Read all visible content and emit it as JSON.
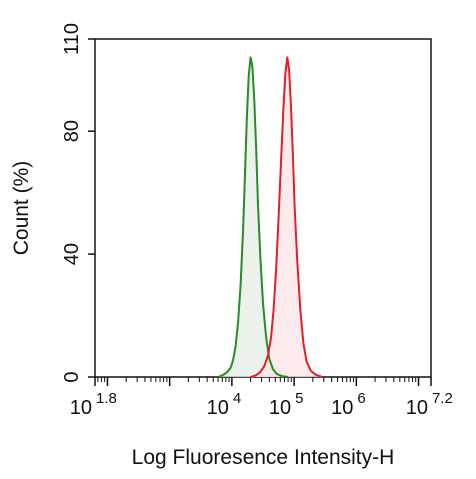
{
  "chart_data": {
    "type": "area",
    "title": "",
    "xlabel": "Log Fluoresence Intensity-H",
    "ylabel": "Count  (%)",
    "x_scale": "log",
    "xlim": [
      1.8,
      7.2
    ],
    "ylim": [
      0,
      110
    ],
    "x_ticks": [
      {
        "base": "10",
        "exp": "1.8",
        "value": 1.8
      },
      {
        "base": "10",
        "exp": "4",
        "value": 4
      },
      {
        "base": "10",
        "exp": "5",
        "value": 5
      },
      {
        "base": "10",
        "exp": "6",
        "value": 6
      },
      {
        "base": "10",
        "exp": "7.2",
        "value": 7.2
      }
    ],
    "y_ticks": [
      {
        "label": "0",
        "value": 0
      },
      {
        "label": "40",
        "value": 40
      },
      {
        "label": "80",
        "value": 80
      },
      {
        "label": "110",
        "value": 110
      }
    ],
    "grid": false,
    "legend": "none",
    "series": [
      {
        "color": "#2a8a2a",
        "fill": "#e4eee4",
        "points": [
          [
            3.78,
            0
          ],
          [
            3.85,
            0.6
          ],
          [
            3.92,
            1.5
          ],
          [
            3.98,
            3
          ],
          [
            4.02,
            5.5
          ],
          [
            4.06,
            10
          ],
          [
            4.1,
            18
          ],
          [
            4.14,
            30
          ],
          [
            4.18,
            48
          ],
          [
            4.21,
            66
          ],
          [
            4.24,
            84
          ],
          [
            4.27,
            98
          ],
          [
            4.3,
            104
          ],
          [
            4.33,
            101
          ],
          [
            4.36,
            90
          ],
          [
            4.39,
            74
          ],
          [
            4.42,
            56
          ],
          [
            4.46,
            38
          ],
          [
            4.5,
            24
          ],
          [
            4.55,
            13
          ],
          [
            4.6,
            6
          ],
          [
            4.66,
            2.5
          ],
          [
            4.72,
            1
          ],
          [
            4.8,
            0.3
          ],
          [
            4.9,
            0
          ]
        ]
      },
      {
        "color": "#e0202c",
        "fill": "#fbe3e5",
        "points": [
          [
            4.3,
            0
          ],
          [
            4.38,
            0.5
          ],
          [
            4.45,
            1.5
          ],
          [
            4.52,
            3.5
          ],
          [
            4.58,
            7
          ],
          [
            4.63,
            13
          ],
          [
            4.67,
            22
          ],
          [
            4.71,
            35
          ],
          [
            4.75,
            52
          ],
          [
            4.79,
            70
          ],
          [
            4.83,
            88
          ],
          [
            4.86,
            99
          ],
          [
            4.89,
            104
          ],
          [
            4.92,
            100
          ],
          [
            4.95,
            88
          ],
          [
            4.98,
            72
          ],
          [
            5.01,
            55
          ],
          [
            5.05,
            38
          ],
          [
            5.1,
            22
          ],
          [
            5.15,
            11
          ],
          [
            5.2,
            5
          ],
          [
            5.27,
            2
          ],
          [
            5.35,
            0.7
          ],
          [
            5.45,
            0
          ]
        ]
      }
    ]
  }
}
